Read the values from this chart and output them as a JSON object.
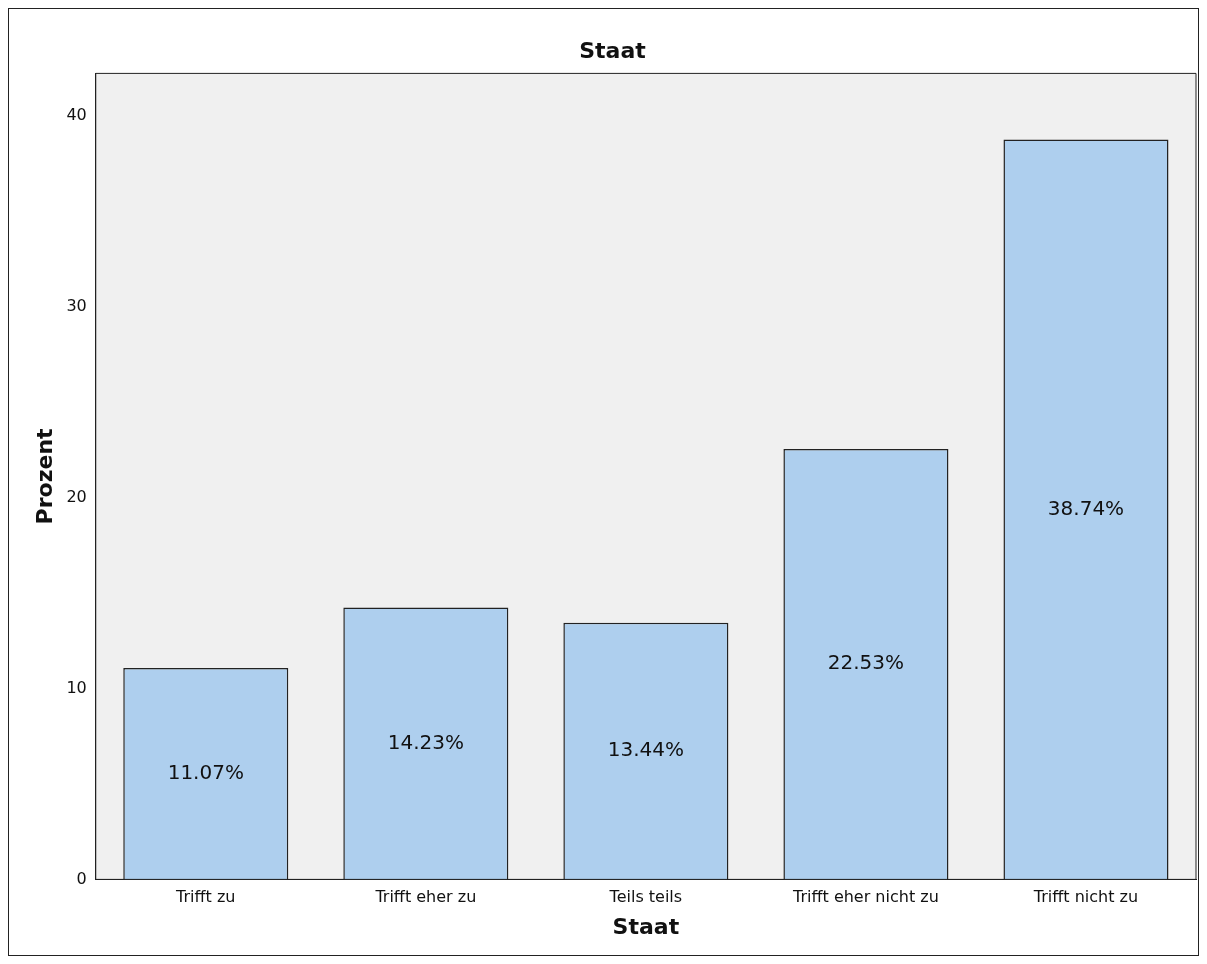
{
  "chart_data": {
    "type": "bar",
    "title": "Staat",
    "xlabel": "Staat",
    "ylabel": "Prozent",
    "categories": [
      "Trifft zu",
      "Trifft eher zu",
      "Teils teils",
      "Trifft eher nicht zu",
      "Trifft nicht zu"
    ],
    "values": [
      11.07,
      14.23,
      13.44,
      22.53,
      38.74
    ],
    "value_labels": [
      "11.07%",
      "14.23%",
      "13.44%",
      "22.53%",
      "38.74%"
    ],
    "color": "#aecfee",
    "ylim": [
      0,
      42.2
    ],
    "yticks": [
      0,
      10,
      20,
      30,
      40
    ],
    "grid": false,
    "legend": false
  }
}
